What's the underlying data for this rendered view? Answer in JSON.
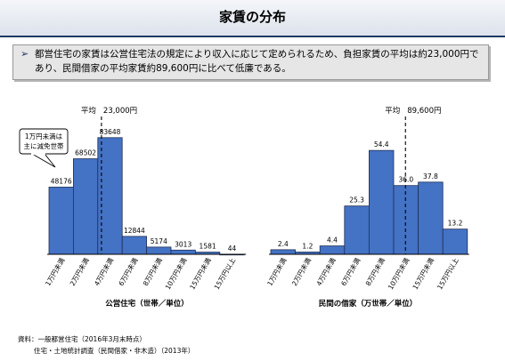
{
  "header": {
    "title": "家賃の分布"
  },
  "summary": {
    "marker": "➢",
    "text": "都営住宅の家賃は公営住宅法の規定により収入に応じて定められるため、負担家賃の平均は約23,000円であり、民間借家の平均家賃約89,600円に比べて低廉である。"
  },
  "chart_data": [
    {
      "type": "bar",
      "title": "",
      "xlabel": "公営住宅（世帯／単位）",
      "ylabel": "",
      "categories": [
        "1万円未満",
        "2万円未満",
        "4万円未満",
        "6万円未満",
        "8万円未満",
        "10万円未満",
        "15万円未満",
        "15万円以上"
      ],
      "values": [
        48176,
        68502,
        83648,
        12844,
        5174,
        3013,
        1581,
        44
      ],
      "data_labels": [
        "48176",
        "68502",
        "83648",
        "12844",
        "5174",
        "3013",
        "1581",
        "44"
      ],
      "ylim": [
        0,
        95000
      ],
      "bar_color": "#4472c4",
      "mean": {
        "label": "平均",
        "value_label": "23,000円",
        "value": 23000
      },
      "callout": {
        "line1": "1万円未満は",
        "line2": "主に減免世帯"
      },
      "grid": false
    },
    {
      "type": "bar",
      "title": "",
      "xlabel": "民間の借家（万世帯／単位）",
      "ylabel": "",
      "categories": [
        "1万円未満",
        "2万円未満",
        "4万円未満",
        "6万円未満",
        "8万円未満",
        "10万円未満",
        "15万円未満",
        "15万円以上"
      ],
      "values": [
        2.4,
        1.2,
        4.4,
        25.3,
        54.4,
        36.0,
        37.8,
        13.2
      ],
      "data_labels": [
        "2.4",
        "1.2",
        "4.4",
        "25.3",
        "54.4",
        "36.0",
        "37.8",
        "13.2"
      ],
      "ylim": [
        0,
        61
      ],
      "bar_color": "#4472c4",
      "mean": {
        "label": "平均",
        "value_label": "89,600円",
        "value": 89600
      },
      "grid": false
    }
  ],
  "source": {
    "line1": "資料：一般都営住宅（2016年3月末時点）",
    "line2": "住宅・土地統計調査（民間借家・非木造）（2013年）"
  }
}
